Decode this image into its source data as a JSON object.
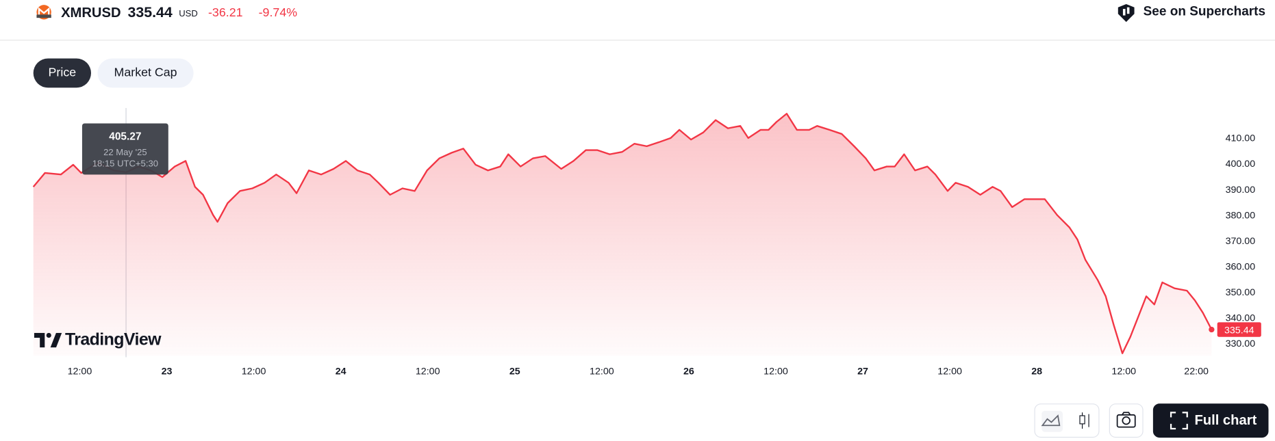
{
  "header": {
    "symbol": "XMRUSD",
    "price": "335.44",
    "currency": "USD",
    "change": "-36.21",
    "change_pct": "-9.74%",
    "supercharts": "See on Supercharts"
  },
  "tabs": [
    "Price",
    "Market Cap"
  ],
  "tooltip": {
    "value": "405.27",
    "date": "22 May '25",
    "time": "18:15 UTC+5:30"
  },
  "brand": "TradingView",
  "toolbar": {
    "full_chart": "Full chart"
  },
  "chart_data": {
    "type": "area",
    "color": "#f23645",
    "x": [
      5.6,
      7.2,
      9.4,
      11.1,
      12.2,
      14.5,
      16.7,
      18.4,
      20.1,
      21.8,
      23.4,
      25.1,
      26.6,
      27.9,
      29.0,
      30.4,
      31.0,
      32.4,
      34.1,
      35.8,
      37.5,
      39.1,
      40.8,
      41.9,
      43.6,
      45.3,
      47.0,
      48.7,
      50.3,
      52.0,
      53.2,
      54.8,
      56.5,
      58.2,
      59.9,
      61.6,
      63.3,
      64.9,
      66.6,
      68.3,
      70.0,
      71.1,
      72.8,
      74.5,
      76.2,
      78.4,
      80.1,
      81.8,
      83.4,
      85.1,
      86.8,
      88.5,
      90.2,
      91.9,
      93.5,
      94.7,
      96.3,
      98.0,
      99.7,
      101.4,
      103.1,
      104.2,
      105.9,
      107.0,
      108.1,
      109.5,
      110.9,
      112.6,
      113.7,
      115.4,
      117.1,
      118.8,
      120.4,
      121.6,
      123.3,
      124.4,
      125.7,
      127.2,
      128.9,
      130.0,
      131.7,
      132.8,
      134.5,
      136.2,
      137.9,
      139.0,
      140.6,
      142.3,
      144.0,
      145.1,
      146.8,
      148.5,
      149.6,
      150.7,
      152.4,
      153.5,
      154.6,
      155.8,
      156.9,
      158.0,
      159.1,
      160.2,
      161.3,
      163.0,
      164.7,
      165.8,
      166.9,
      168.1
    ],
    "values": [
      391,
      396.4,
      395.8,
      399.6,
      396.4,
      400.5,
      397.4,
      396.7,
      398.9,
      397.4,
      394.8,
      398.9,
      401.1,
      391,
      387.9,
      380,
      377.4,
      384.7,
      389.4,
      390.4,
      392.6,
      395.8,
      392.6,
      388.5,
      397.4,
      395.8,
      398,
      401.1,
      397.4,
      395.8,
      392.6,
      387.9,
      390.4,
      389.4,
      397.4,
      402.1,
      404.3,
      405.9,
      399.6,
      397.4,
      398.9,
      403.7,
      398.9,
      402.1,
      403,
      398,
      401.1,
      405.3,
      405.3,
      403.7,
      404.6,
      407.8,
      406.8,
      408.4,
      410,
      413.2,
      409.4,
      412.2,
      417,
      413.8,
      414.7,
      410,
      413.2,
      413.2,
      416.3,
      419.5,
      413.2,
      413.2,
      414.7,
      413.2,
      411.6,
      406.8,
      402.1,
      397.4,
      398.9,
      398.9,
      403.7,
      397.4,
      398.9,
      395.8,
      389.4,
      392.6,
      391,
      387.9,
      391,
      389.4,
      383.1,
      386.2,
      386.2,
      386.2,
      380,
      375.2,
      370.5,
      362.6,
      354.7,
      348.4,
      337.3,
      326.2,
      332.6,
      340.5,
      348.4,
      345.2,
      353.8,
      351.5,
      350.6,
      346.8,
      342,
      335.44
    ],
    "xlim": [
      5.6,
      168.1
    ],
    "ylim": [
      325.3,
      421.7
    ],
    "xticks": [
      {
        "value": 12,
        "label": "12:00"
      },
      {
        "value": 24,
        "label": "23"
      },
      {
        "value": 36,
        "label": "12:00"
      },
      {
        "value": 48,
        "label": "24"
      },
      {
        "value": 60,
        "label": "12:00"
      },
      {
        "value": 72,
        "label": "25"
      },
      {
        "value": 84,
        "label": "12:00"
      },
      {
        "value": 96,
        "label": "26"
      },
      {
        "value": 108,
        "label": "12:00"
      },
      {
        "value": 120,
        "label": "27"
      },
      {
        "value": 132,
        "label": "12:00"
      },
      {
        "value": 144,
        "label": "28"
      },
      {
        "value": 156,
        "label": "12:00"
      },
      {
        "value": 166,
        "label": "22:00"
      }
    ],
    "yticks": [
      {
        "value": 330,
        "label": "330.00"
      },
      {
        "value": 340,
        "label": "340.00"
      },
      {
        "value": 350,
        "label": "350.00"
      },
      {
        "value": 360,
        "label": "360.00"
      },
      {
        "value": 370,
        "label": "370.00"
      },
      {
        "value": 380,
        "label": "380.00"
      },
      {
        "value": 390,
        "label": "390.00"
      },
      {
        "value": 400,
        "label": "400.00"
      },
      {
        "value": 410,
        "label": "410.00"
      }
    ]
  }
}
